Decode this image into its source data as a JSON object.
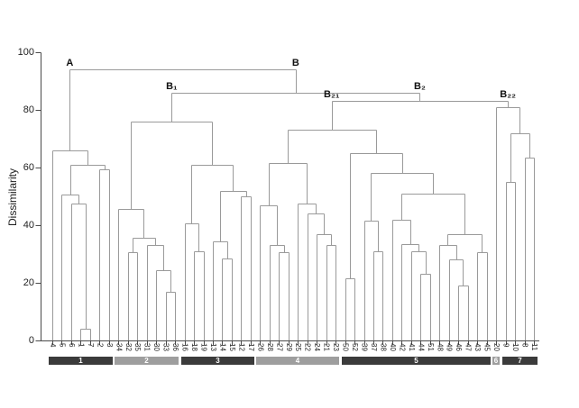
{
  "chart_data": {
    "type": "dendrogram",
    "title": "",
    "ylabel": "Dissimilarity",
    "ylim": [
      0,
      100
    ],
    "yticks": [
      0,
      20,
      40,
      60,
      80,
      100
    ],
    "grid": false,
    "annotations": [
      "A",
      "B",
      "B₁",
      "B₂",
      "B₂₁",
      "B₂₂"
    ],
    "clusters": [
      {
        "label": "1",
        "shade": "dark",
        "leaves": [
          "4",
          "5",
          "6",
          "1",
          "7",
          "2",
          "3"
        ]
      },
      {
        "label": "2",
        "shade": "light",
        "leaves": [
          "34",
          "32",
          "35",
          "31",
          "30",
          "33",
          "36"
        ]
      },
      {
        "label": "3",
        "shade": "dark",
        "leaves": [
          "16",
          "18",
          "19",
          "13",
          "14",
          "15",
          "12",
          "17"
        ]
      },
      {
        "label": "4",
        "shade": "light",
        "leaves": [
          "26",
          "28",
          "27",
          "29",
          "25",
          "22",
          "24",
          "21",
          "23"
        ]
      },
      {
        "label": "5",
        "shade": "dark",
        "leaves": [
          "50",
          "52",
          "39",
          "37",
          "38",
          "40",
          "42",
          "41",
          "44",
          "51",
          "48",
          "49",
          "46",
          "47",
          "43",
          "45"
        ]
      },
      {
        "label": "6",
        "shade": "light",
        "leaves": [
          "20"
        ]
      },
      {
        "label": "7",
        "shade": "dark",
        "leaves": [
          "9",
          "10",
          "8",
          "11"
        ]
      }
    ],
    "tree": {
      "h": 94,
      "c": [
        {
          "h": 66,
          "tag": "A",
          "c": [
            "4",
            {
              "h": 61,
              "c": [
                {
                  "h": 50.5,
                  "c": [
                    "5",
                    {
                      "h": 47.5,
                      "c": [
                        "6",
                        {
                          "h": 4,
                          "c": [
                            "1",
                            "7"
                          ]
                        }
                      ]
                    }
                  ]
                },
                {
                  "h": 59.5,
                  "c": [
                    "2",
                    "3"
                  ]
                }
              ]
            }
          ]
        },
        {
          "h": 86,
          "tag": "B",
          "c": [
            {
              "h": 76,
              "tag": "B₁",
              "c": [
                {
                  "h": 45.5,
                  "c": [
                    "34",
                    {
                      "h": 35.5,
                      "c": [
                        {
                          "h": 30.5,
                          "c": [
                            "32",
                            "35"
                          ]
                        },
                        {
                          "h": 33,
                          "c": [
                            "31",
                            {
                              "h": 24.5,
                              "c": [
                                "30",
                                {
                                  "h": 17,
                                  "c": [
                                    "33",
                                    "36"
                                  ]
                                }
                              ]
                            }
                          ]
                        }
                      ]
                    }
                  ]
                },
                {
                  "h": 61,
                  "c": [
                    {
                      "h": 40.5,
                      "c": [
                        "16",
                        {
                          "h": 31,
                          "c": [
                            "18",
                            "19"
                          ]
                        }
                      ]
                    },
                    {
                      "h": 52,
                      "c": [
                        {
                          "h": 34.5,
                          "c": [
                            "13",
                            {
                              "h": 28.5,
                              "c": [
                                "14",
                                "15"
                              ]
                            }
                          ]
                        },
                        {
                          "h": 50,
                          "c": [
                            "12",
                            "17"
                          ]
                        }
                      ]
                    }
                  ]
                }
              ]
            },
            {
              "h": 83,
              "tag": "B₂",
              "c": [
                {
                  "h": 73,
                  "tag": "B₂₁",
                  "c": [
                    {
                      "h": 61.5,
                      "c": [
                        {
                          "h": 47,
                          "c": [
                            "26",
                            {
                              "h": 33,
                              "c": [
                                "28",
                                {
                                  "h": 30.5,
                                  "c": [
                                    "27",
                                    "29"
                                  ]
                                }
                              ]
                            }
                          ]
                        },
                        {
                          "h": 47.5,
                          "c": [
                            "25",
                            {
                              "h": 44,
                              "c": [
                                "22",
                                {
                                  "h": 37,
                                  "c": [
                                    "24",
                                    {
                                      "h": 33,
                                      "c": [
                                        "21",
                                        "23"
                                      ]
                                    }
                                  ]
                                }
                              ]
                            }
                          ]
                        }
                      ]
                    },
                    {
                      "h": 65,
                      "c": [
                        {
                          "h": 21.5,
                          "c": [
                            "50",
                            "52"
                          ]
                        },
                        {
                          "h": 58,
                          "c": [
                            {
                              "h": 41.5,
                              "c": [
                                "39",
                                {
                                  "h": 31,
                                  "c": [
                                    "37",
                                    "38"
                                  ]
                                }
                              ]
                            },
                            {
                              "h": 51,
                              "c": [
                                {
                                  "h": 42,
                                  "c": [
                                    "40",
                                    {
                                      "h": 33.5,
                                      "c": [
                                        "42",
                                        {
                                          "h": 31,
                                          "c": [
                                            "41",
                                            {
                                              "h": 23,
                                              "c": [
                                                "44",
                                                "51"
                                              ]
                                            }
                                          ]
                                        }
                                      ]
                                    }
                                  ]
                                },
                                {
                                  "h": 37,
                                  "c": [
                                    {
                                      "h": 33,
                                      "c": [
                                        "48",
                                        {
                                          "h": 28,
                                          "c": [
                                            "49",
                                            {
                                              "h": 19,
                                              "c": [
                                                "46",
                                                "47"
                                              ]
                                            }
                                          ]
                                        }
                                      ]
                                    },
                                    {
                                      "h": 30.5,
                                      "c": [
                                        "43",
                                        "45"
                                      ]
                                    }
                                  ]
                                }
                              ]
                            }
                          ]
                        }
                      ]
                    }
                  ]
                },
                {
                  "h": 81,
                  "tag": "B₂₂",
                  "c": [
                    "20",
                    {
                      "h": 72,
                      "c": [
                        {
                          "h": 55,
                          "c": [
                            "9",
                            "10"
                          ]
                        },
                        {
                          "h": 63.5,
                          "c": [
                            "8",
                            "11"
                          ]
                        }
                      ]
                    }
                  ]
                }
              ]
            }
          ]
        }
      ]
    }
  },
  "colors": {
    "band_dark": "#3b3b3b",
    "band_light": "#9e9e9e",
    "band_text": "#ffffff",
    "tree_line": "#9a9a9a",
    "axis_line": "#4a4a4a",
    "text": "#222222"
  }
}
